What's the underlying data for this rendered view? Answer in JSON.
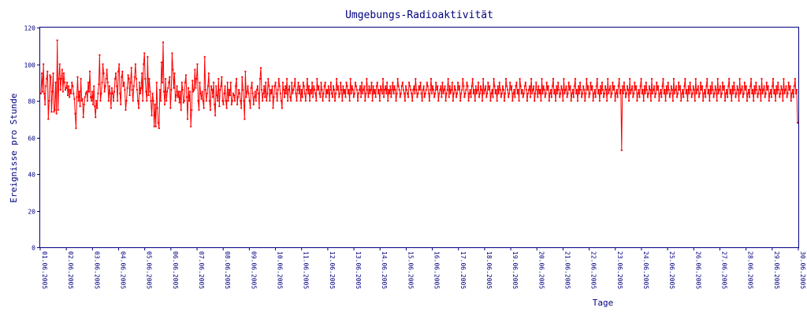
{
  "chart_data": {
    "type": "line",
    "title": "Umgebungs-Radioaktivität",
    "xlabel": "Tage",
    "ylabel": "Ereignisse pro Stunde",
    "ylim": [
      0,
      120
    ],
    "yticks": [
      0,
      20,
      40,
      60,
      80,
      100,
      120
    ],
    "xticks": [
      "01.06.2005",
      "02.06.2005",
      "03.06.2005",
      "04.06.2005",
      "05.06.2005",
      "06.06.2005",
      "07.06.2005",
      "08.06.2005",
      "09.06.2005",
      "10.06.2005",
      "11.06.2005",
      "12.06.2005",
      "13.06.2005",
      "14.06.2005",
      "15.06.2005",
      "16.06.2005",
      "17.06.2005",
      "18.06.2005",
      "19.06.2005",
      "20.06.2005",
      "21.06.2005",
      "22.06.2005",
      "23.06.2005",
      "24.06.2005",
      "25.06.2005",
      "26.06.2005",
      "27.06.2005",
      "28.06.2005",
      "29.06.2005",
      "30.06.2005"
    ],
    "grid": false,
    "legend": "none",
    "line_color": "#ff0000",
    "axis_color": "#000080",
    "series": [
      {
        "values": [
          84,
          95,
          85,
          100,
          84,
          78,
          88,
          92,
          96,
          70,
          80,
          94,
          93,
          74,
          85,
          95,
          74,
          75,
          90,
          73,
          113,
          75,
          92,
          100,
          86,
          92,
          97,
          85,
          95,
          90,
          86,
          87,
          90,
          83,
          88,
          82,
          86,
          84,
          90,
          88,
          84,
          81,
          73,
          65,
          82,
          93,
          80,
          85,
          77,
          92,
          80,
          81,
          71,
          78,
          82,
          84,
          85,
          80,
          90,
          85,
          96,
          82,
          80,
          85,
          78,
          88,
          77,
          71,
          80,
          76,
          84,
          89,
          105,
          80,
          84,
          90,
          100,
          95,
          85,
          88,
          92,
          97,
          90,
          80,
          88,
          84,
          76,
          87,
          84,
          80,
          85,
          92,
          95,
          88,
          80,
          96,
          100,
          84,
          78,
          93,
          96,
          88,
          90,
          86,
          75,
          80,
          87,
          94,
          92,
          83,
          90,
          98,
          86,
          80,
          88,
          93,
          100,
          92,
          86,
          80,
          76,
          90,
          84,
          87,
          95,
          80,
          100,
          106,
          92,
          85,
          80,
          104,
          83,
          92,
          85,
          80,
          72,
          84,
          80,
          66,
          78,
          66,
          90,
          76,
          68,
          65,
          86,
          80,
          101,
          90,
          112,
          85,
          78,
          92,
          80,
          85,
          87,
          90,
          93,
          76,
          86,
          106,
          97,
          87,
          95,
          80,
          83,
          88,
          82,
          85,
          79,
          85,
          75,
          90,
          86,
          79,
          80,
          90,
          94,
          82,
          70,
          87,
          80,
          85,
          66,
          75,
          91,
          85,
          86,
          97,
          87,
          92,
          100,
          80,
          75,
          90,
          84,
          81,
          85,
          80,
          76,
          104,
          86,
          80,
          84,
          88,
          95,
          80,
          75,
          88,
          86,
          82,
          90,
          78,
          72,
          88,
          83,
          80,
          92,
          77,
          86,
          88,
          93,
          80,
          78,
          84,
          88,
          80,
          76,
          90,
          80,
          86,
          83,
          90,
          78,
          80,
          84,
          83,
          80,
          88,
          92,
          78,
          82,
          86,
          84,
          80,
          76,
          93,
          86,
          80,
          70,
          96,
          82,
          85,
          88,
          84,
          80,
          76,
          87,
          90,
          84,
          78,
          82,
          85,
          80,
          86,
          88,
          84,
          76,
          92,
          98,
          86,
          80,
          84,
          88,
          82,
          90,
          80,
          84,
          92,
          88,
          80,
          86,
          84,
          88,
          76,
          82,
          88,
          90,
          84,
          80,
          86,
          92,
          88,
          84,
          80,
          76,
          90,
          86,
          82,
          88,
          84,
          92,
          80,
          86,
          88,
          82,
          80,
          90,
          84,
          86,
          88,
          92,
          84,
          80,
          86,
          90,
          84,
          88,
          80,
          86,
          82,
          90,
          88,
          84,
          80,
          86,
          92,
          84,
          88,
          80,
          86,
          84,
          90,
          82,
          88,
          86,
          84,
          80,
          92,
          86,
          88,
          84,
          82,
          90,
          86,
          80,
          84,
          88,
          90,
          82,
          86,
          84,
          88,
          80,
          86,
          90,
          84,
          82,
          88,
          86,
          80,
          84,
          92,
          86,
          88,
          82,
          84,
          90,
          86,
          80,
          88,
          84,
          86,
          82,
          90,
          88,
          84,
          86,
          80,
          92,
          84,
          88,
          86,
          82,
          84,
          90,
          88,
          86,
          80,
          84,
          86,
          88,
          82,
          90,
          84,
          86,
          88,
          80,
          84,
          92,
          86,
          82,
          88,
          84,
          86,
          90,
          80,
          88,
          84,
          86,
          82,
          88,
          90,
          84,
          86,
          80,
          88,
          86,
          84,
          92,
          82,
          86,
          88,
          84,
          90,
          80,
          86,
          84,
          88,
          82,
          86,
          90,
          84,
          88,
          86,
          80,
          84,
          92,
          88,
          86,
          82,
          84,
          88,
          90,
          86,
          84,
          80,
          88,
          86,
          84,
          82,
          90,
          88,
          86,
          84,
          80,
          86,
          88,
          84,
          92,
          86,
          82,
          84,
          88,
          86,
          90,
          84,
          80,
          86,
          88,
          82,
          84,
          86,
          90,
          88,
          84,
          80,
          86,
          92,
          84,
          88,
          86,
          82,
          84,
          90,
          86,
          88,
          80,
          84,
          86,
          88,
          82,
          90,
          84,
          86,
          88,
          80,
          84,
          86,
          92,
          82,
          88,
          84,
          86,
          90,
          80,
          84,
          88,
          86,
          82,
          84,
          90,
          86,
          88,
          80,
          84,
          86,
          92,
          88,
          82,
          84,
          86,
          90,
          88,
          80,
          84,
          86,
          82,
          88,
          92,
          84,
          86,
          80,
          88,
          84,
          86,
          90,
          82,
          84,
          88,
          86,
          80,
          92,
          84,
          86,
          88,
          82,
          84,
          90,
          86,
          88,
          80,
          84,
          86,
          82,
          92,
          88,
          84,
          86,
          80,
          88,
          84,
          90,
          86,
          82,
          84,
          88,
          86,
          80,
          84,
          92,
          88,
          86,
          82,
          84,
          90,
          86,
          88,
          80,
          84,
          86,
          82,
          88,
          90,
          84,
          86,
          80,
          92,
          88,
          84,
          86,
          82,
          84,
          88,
          90,
          86,
          80,
          84,
          86,
          88,
          82,
          92,
          84,
          86,
          88,
          80,
          84,
          90,
          86,
          82,
          88,
          84,
          86,
          80,
          92,
          84,
          88,
          86,
          82,
          84,
          90,
          86,
          88,
          80,
          84,
          86,
          82,
          88,
          92,
          84,
          86,
          80,
          88,
          84,
          90,
          86,
          82,
          84,
          88,
          86,
          80,
          92,
          84,
          86,
          88,
          82,
          84,
          90,
          86,
          88,
          80,
          84,
          86,
          82,
          88,
          92,
          84,
          86,
          80,
          88,
          84,
          90,
          86,
          82,
          84,
          88,
          86,
          80,
          84,
          92,
          86,
          88,
          82,
          84,
          90,
          86,
          88,
          80,
          84,
          86,
          82,
          88,
          92,
          84,
          86,
          80,
          88,
          84,
          90,
          86,
          82,
          84,
          88,
          86,
          80,
          92,
          84,
          86,
          88,
          82,
          84,
          90,
          86,
          88,
          80,
          84,
          86,
          82,
          88,
          92,
          84,
          86,
          53,
          88,
          84,
          90,
          86,
          82,
          84,
          88,
          86,
          80,
          92,
          84,
          86,
          88,
          82,
          84,
          90,
          86,
          88,
          80,
          84,
          86,
          82,
          88,
          92,
          84,
          86,
          80,
          88,
          84,
          90,
          86,
          82,
          84,
          88,
          86,
          80,
          92,
          84,
          86,
          88,
          82,
          84,
          90,
          86,
          88,
          80,
          84,
          86,
          82,
          88,
          92,
          84,
          86,
          80,
          88,
          84,
          90,
          86,
          82,
          84,
          88,
          86,
          80,
          92,
          84,
          86,
          88,
          82,
          84,
          90,
          86,
          88,
          80,
          84,
          86,
          82,
          88,
          92,
          84,
          86,
          80,
          88,
          84,
          90,
          86,
          82,
          84,
          88,
          86,
          80,
          92,
          84,
          86,
          88,
          82,
          84,
          90,
          86,
          88,
          80,
          84,
          86,
          82,
          88,
          92,
          84,
          86,
          80,
          88,
          84,
          90,
          86,
          82,
          84,
          88,
          86,
          80,
          92,
          84,
          86,
          88,
          82,
          84,
          90,
          86,
          88,
          80,
          84,
          86,
          82,
          88,
          92,
          84,
          86,
          80,
          88,
          84,
          90,
          86,
          82,
          84,
          88,
          86,
          80,
          92,
          84,
          86,
          88,
          82,
          84,
          90,
          86,
          88,
          80,
          84,
          86,
          82,
          88,
          92,
          84,
          86,
          80,
          88,
          84,
          90,
          86,
          82,
          84,
          88,
          86,
          80,
          92,
          84,
          86,
          88,
          82,
          84,
          90,
          86,
          88,
          80,
          84,
          86,
          82,
          88,
          92,
          84,
          86,
          80,
          88,
          84,
          90,
          86,
          82,
          84,
          88,
          86,
          80,
          92,
          84,
          86,
          88,
          82,
          84,
          90,
          86,
          88,
          80,
          84,
          86,
          82,
          88,
          92,
          84,
          86,
          68
        ]
      }
    ]
  }
}
